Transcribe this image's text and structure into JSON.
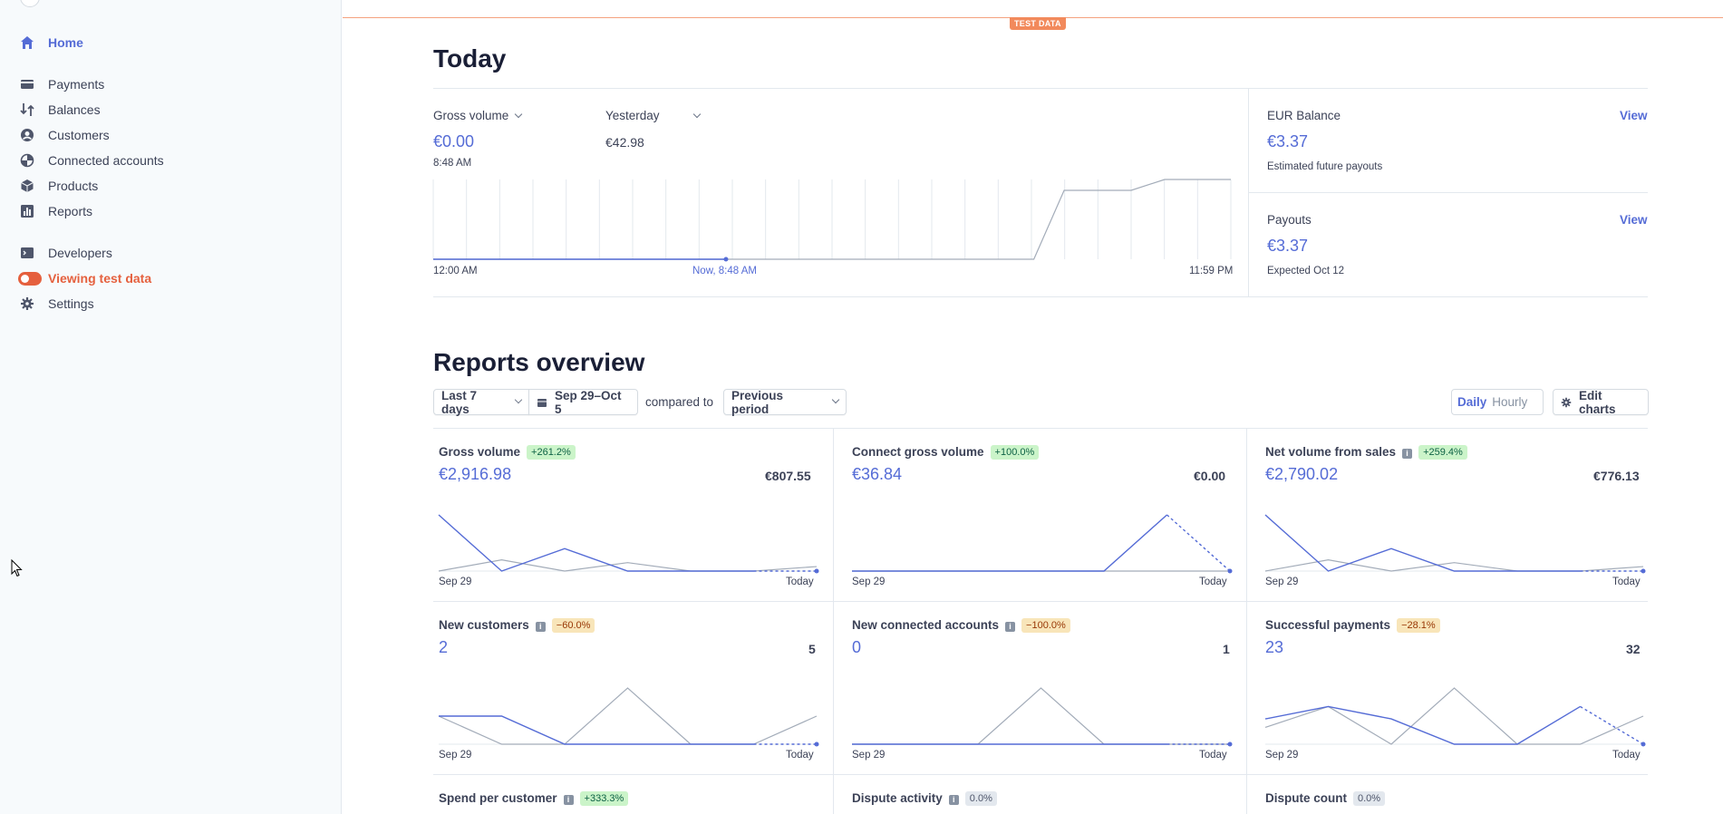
{
  "sidebar": {
    "items": [
      {
        "label": "Home",
        "icon": "home-icon"
      },
      {
        "label": "Payments",
        "icon": "payments-icon"
      },
      {
        "label": "Balances",
        "icon": "balances-icon"
      },
      {
        "label": "Customers",
        "icon": "customers-icon"
      },
      {
        "label": "Connected accounts",
        "icon": "connected-accounts-icon"
      },
      {
        "label": "Products",
        "icon": "products-icon"
      },
      {
        "label": "Reports",
        "icon": "reports-icon"
      },
      {
        "label": "Developers",
        "icon": "developers-icon"
      },
      {
        "label": "Viewing test data",
        "icon": "toggle-icon"
      },
      {
        "label": "Settings",
        "icon": "gear-icon"
      }
    ]
  },
  "test_badge": "TEST DATA",
  "today": {
    "title": "Today",
    "gross_volume_label": "Gross volume",
    "gross_volume_value": "€0.00",
    "gross_volume_time": "8:48 AM",
    "yesterday_label": "Yesterday",
    "yesterday_value": "€42.98",
    "axis_start": "12:00 AM",
    "axis_now": "Now, 8:48 AM",
    "axis_end": "11:59 PM",
    "balance_label": "EUR Balance",
    "balance_view": "View",
    "balance_value": "€3.37",
    "balance_sub": "Estimated future payouts",
    "payouts_label": "Payouts",
    "payouts_view": "View",
    "payouts_value": "€3.37",
    "payouts_sub": "Expected Oct 12"
  },
  "reports": {
    "title": "Reports overview",
    "range_select": "Last 7 days",
    "date_range": "Sep 29–Oct 5",
    "compared_to": "compared to",
    "compare_select": "Previous period",
    "daily": "Daily",
    "hourly": "Hourly",
    "edit_charts": "Edit charts",
    "axis_start": "Sep 29",
    "axis_end": "Today",
    "cards": [
      {
        "title": "Gross volume",
        "badge": "+261.2%",
        "value": "€2,916.98",
        "prev": "€807.55"
      },
      {
        "title": "Connect gross volume",
        "badge": "+100.0%",
        "value": "€36.84",
        "prev": "€0.00"
      },
      {
        "title": "Net volume from sales",
        "badge": "+259.4%",
        "value": "€2,790.02",
        "prev": "€776.13"
      },
      {
        "title": "New customers",
        "badge": "−60.0%",
        "value": "2",
        "prev": "5"
      },
      {
        "title": "New connected accounts",
        "badge": "−100.0%",
        "value": "0",
        "prev": "1"
      },
      {
        "title": "Successful payments",
        "badge": "−28.1%",
        "value": "23",
        "prev": "32"
      },
      {
        "title": "Spend per customer",
        "badge": "+333.3%"
      },
      {
        "title": "Dispute activity",
        "badge": "0.0%"
      },
      {
        "title": "Dispute count",
        "badge": "0.0%"
      }
    ]
  },
  "colors": {
    "accent": "#556cd6",
    "test": "#e5603e",
    "compare": "#a3acb9"
  }
}
